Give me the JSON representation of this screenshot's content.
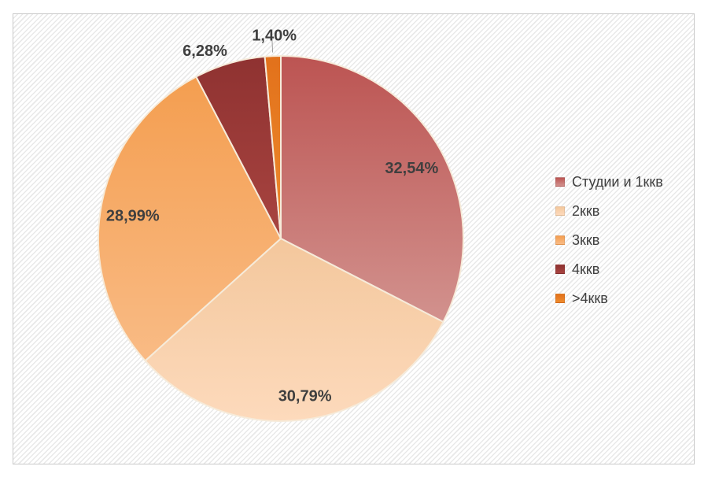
{
  "chart_data": {
    "type": "pie",
    "title": "",
    "legend_position": "right",
    "labels_format": "percent, comma decimal separator",
    "label_text_color": "#3F3F3F",
    "slice_border_color": "#F6EBDA",
    "leader_line_color": "#9E9E9E",
    "panel": {
      "border_color": "#C9C9C9",
      "hatch_color": "#E9E9E9",
      "background_color": "#FFFFFF"
    },
    "start_angle_deg": 0,
    "direction": "clockwise",
    "slices": [
      {
        "label": "Студии и 1ккв",
        "value": 32.54,
        "display": "32,54%",
        "color": "#BE5A57",
        "gradient": [
          "#BC5452",
          "#D2928E"
        ],
        "label_placement": "inside",
        "label_offset": [
          4,
          9
        ],
        "leader": false
      },
      {
        "label": "2ккв",
        "value": 30.79,
        "display": "30,79%",
        "color": "#F8CFA8",
        "gradient": [
          "#F3C79C",
          "#FDDABC"
        ],
        "label_placement": "inside",
        "label_offset": [
          6,
          11
        ],
        "leader": false
      },
      {
        "label": "3ккв",
        "value": 28.99,
        "display": "28,99%",
        "color": "#F2A35F",
        "gradient": [
          "#F49E50",
          "#F9BB85"
        ],
        "label_placement": "inside",
        "label_offset": [
          -1,
          4
        ],
        "leader": false
      },
      {
        "label": "4ккв",
        "value": 6.28,
        "display": "6,28%",
        "color": "#953735",
        "gradient": [
          "#8F3231",
          "#A84440"
        ],
        "label_placement": "outside",
        "label_offset": [
          -24,
          8
        ],
        "leader": false
      },
      {
        "label": ">4ккв",
        "value": 1.4,
        "display": "1,40%",
        "color": "#E2711B",
        "gradient": [
          "#E2711B",
          "#EE8B2E"
        ],
        "label_placement": "outside",
        "label_offset": [
          3,
          -1
        ],
        "leader": true
      }
    ]
  }
}
